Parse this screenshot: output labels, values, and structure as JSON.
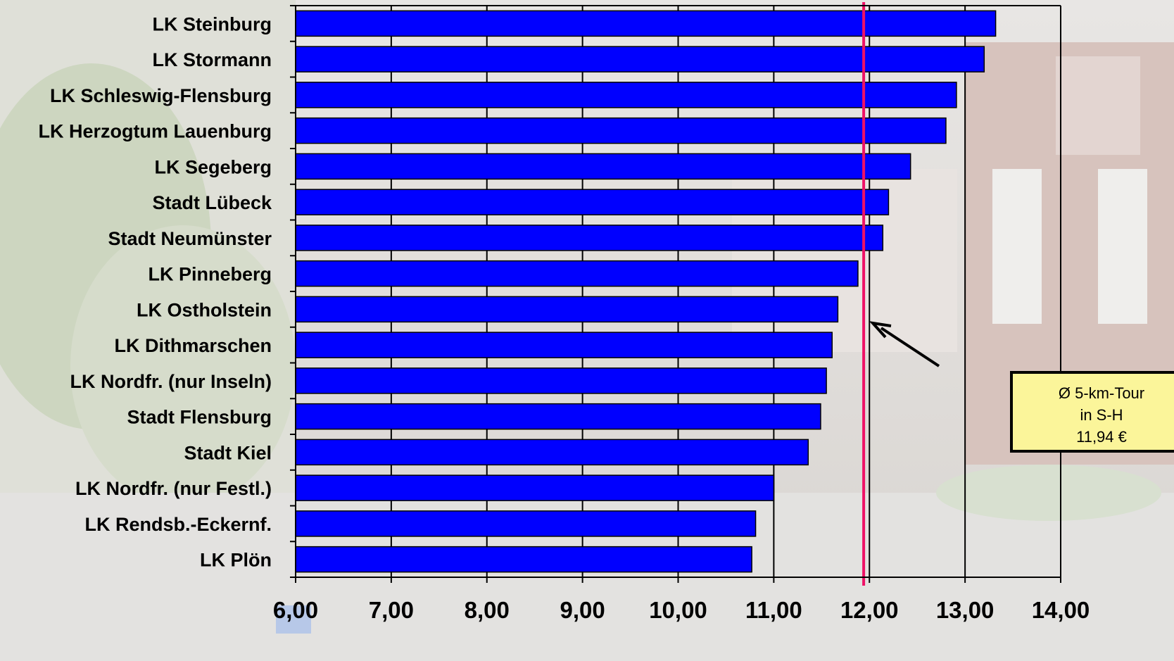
{
  "chart_data": {
    "type": "bar",
    "orientation": "horizontal",
    "categories": [
      "LK Steinburg",
      "LK Stormann",
      "LK Schleswig-Flensburg",
      "LK Herzogtum Lauenburg",
      "LK Segeberg",
      "Stadt Lübeck",
      "Stadt Neumünster",
      "LK Pinneberg",
      "LK Ostholstein",
      "LK Dithmarschen",
      "LK Nordfr. (nur Inseln)",
      "Stadt Flensburg",
      "Stadt Kiel",
      "LK Nordfr. (nur Festl.)",
      "LK Rendsb.-Eckernf.",
      "LK Plön"
    ],
    "values": [
      13.32,
      13.2,
      12.91,
      12.8,
      12.43,
      12.2,
      12.14,
      11.88,
      11.67,
      11.61,
      11.55,
      11.49,
      11.36,
      11.0,
      10.81,
      10.77
    ],
    "xlim": [
      6,
      14
    ],
    "xticks": [
      "6,00",
      "7,00",
      "8,00",
      "9,00",
      "10,00",
      "11,00",
      "12,00",
      "13,00",
      "14,00"
    ],
    "xgrid": true,
    "bar_color": "#0000ff",
    "reference_line": {
      "value": 11.94,
      "color": "#ee1166"
    },
    "annotation": {
      "lines": [
        "Ø 5-km-Tour",
        "in S-H",
        "11,94 €"
      ],
      "background": "#fbf59a"
    },
    "title": "",
    "xlabel": "",
    "ylabel": ""
  }
}
